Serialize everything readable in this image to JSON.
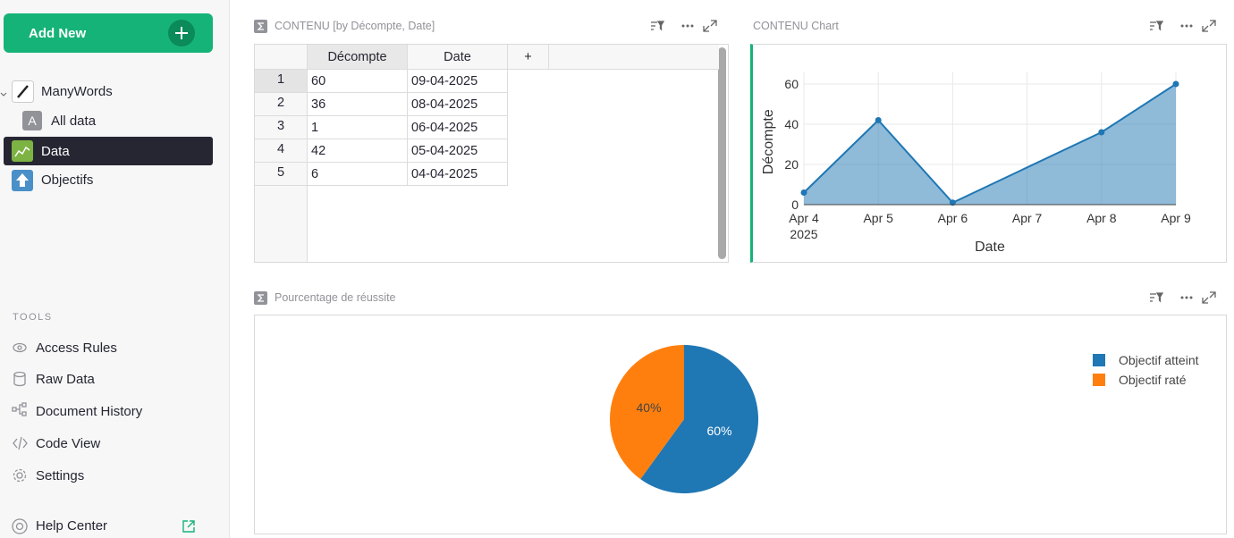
{
  "sidebar": {
    "add_new": "Add New",
    "pages": [
      {
        "label": "ManyWords"
      },
      {
        "icon": "A",
        "label": "All data"
      },
      {
        "label": "Data"
      },
      {
        "label": "Objectifs"
      }
    ],
    "tools_heading": "TOOLS",
    "tools": [
      "Access Rules",
      "Raw Data",
      "Document History",
      "Code View",
      "Settings"
    ],
    "help": "Help Center"
  },
  "table": {
    "title": "CONTENU [by Décompte, Date]",
    "columns": [
      "Décompte",
      "Date"
    ],
    "add_column": "+",
    "row_numbers": [
      1,
      2,
      3,
      4,
      5
    ],
    "rows": [
      [
        60,
        "09-04-2025"
      ],
      [
        36,
        "08-04-2025"
      ],
      [
        1,
        "06-04-2025"
      ],
      [
        42,
        "05-04-2025"
      ],
      [
        6,
        "04-04-2025"
      ]
    ]
  },
  "chart_data": [
    {
      "type": "area",
      "title": "CONTENU Chart",
      "x": [
        "2025-04-04",
        "2025-04-05",
        "2025-04-06",
        "2025-04-08",
        "2025-04-09"
      ],
      "series": [
        {
          "name": "Décompte",
          "color": "#1f77b4",
          "values": [
            6,
            42,
            1,
            36,
            60
          ]
        }
      ],
      "xlabel": "Date",
      "ylabel": "Décompte",
      "xlim": [
        "2025-04-04",
        "2025-04-09"
      ],
      "xticks": [
        {
          "value": "2025-04-04",
          "label": "Apr 4"
        },
        {
          "value": "2025-04-05",
          "label": "Apr 5"
        },
        {
          "value": "2025-04-06",
          "label": "Apr 6"
        },
        {
          "value": "2025-04-07",
          "label": "Apr 7"
        },
        {
          "value": "2025-04-08",
          "label": "Apr 8"
        },
        {
          "value": "2025-04-09",
          "label": "Apr 9"
        }
      ],
      "x_year_label": "2025",
      "ylim": [
        0,
        66
      ],
      "yticks": [
        0,
        20,
        40,
        60
      ],
      "grid": true
    },
    {
      "type": "pie",
      "title": "Pourcentage de réussite",
      "categories": [
        "Objectif atteint",
        "Objectif raté"
      ],
      "values": [
        60,
        40
      ],
      "value_labels": [
        "60%",
        "40%"
      ],
      "colors": [
        "#1f77b4",
        "#ff7f0e"
      ],
      "legend": "top-right"
    }
  ]
}
